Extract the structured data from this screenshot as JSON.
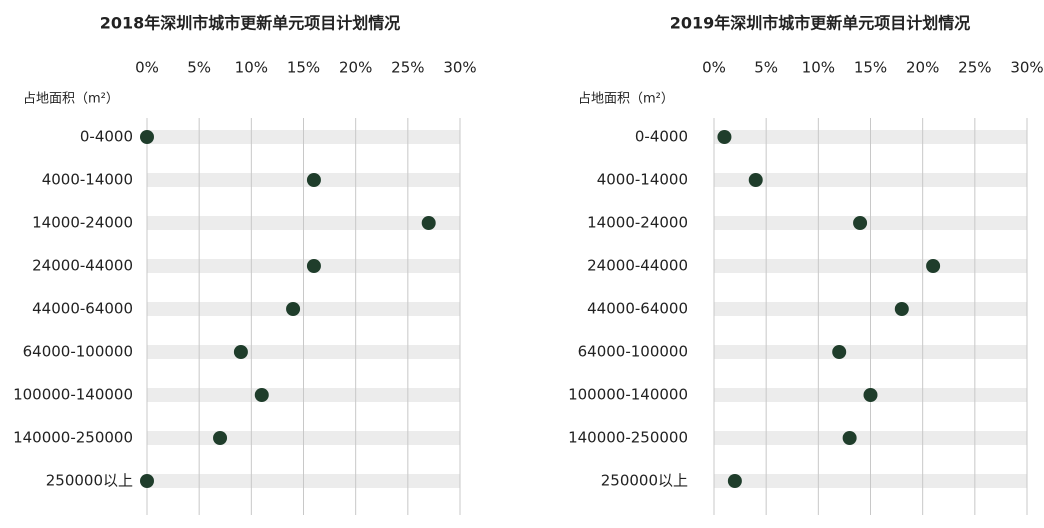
{
  "chart_data": [
    {
      "type": "dot",
      "title": "2018年深圳市城市更新单元项目计划情况",
      "y_label": "占地面积（m²）",
      "categories": [
        "0-4000",
        "4000-14000",
        "14000-24000",
        "24000-44000",
        "44000-64000",
        "64000-100000",
        "100000-140000",
        "140000-250000",
        "250000以上"
      ],
      "values": [
        0,
        16,
        27,
        16,
        14,
        9,
        11,
        7,
        0
      ],
      "color": "#1f3d2b",
      "xlim": [
        0,
        30
      ],
      "xticks": [
        {
          "value": 0,
          "label": "0%"
        },
        {
          "value": 5,
          "label": "5%"
        },
        {
          "value": 10,
          "label": "10%"
        },
        {
          "value": 15,
          "label": "15%"
        },
        {
          "value": 20,
          "label": "20%"
        },
        {
          "value": 25,
          "label": "25%"
        },
        {
          "value": 30,
          "label": "30%"
        }
      ],
      "grid": true
    },
    {
      "type": "dot",
      "title": "2019年深圳市城市更新单元项目计划情况",
      "y_label": "占地面积（m²）",
      "categories": [
        "0-4000",
        "4000-14000",
        "14000-24000",
        "24000-44000",
        "44000-64000",
        "64000-100000",
        "100000-140000",
        "140000-250000",
        "250000以上"
      ],
      "values": [
        1,
        4,
        14,
        21,
        18,
        12,
        15,
        13,
        2
      ],
      "color": "#1f3d2b",
      "xlim": [
        0,
        30
      ],
      "xticks": [
        {
          "value": 0,
          "label": "0%"
        },
        {
          "value": 5,
          "label": "5%"
        },
        {
          "value": 10,
          "label": "10%"
        },
        {
          "value": 15,
          "label": "15%"
        },
        {
          "value": 20,
          "label": "20%"
        },
        {
          "value": 25,
          "label": "25%"
        },
        {
          "value": 30,
          "label": "30%"
        }
      ],
      "grid": true
    }
  ]
}
